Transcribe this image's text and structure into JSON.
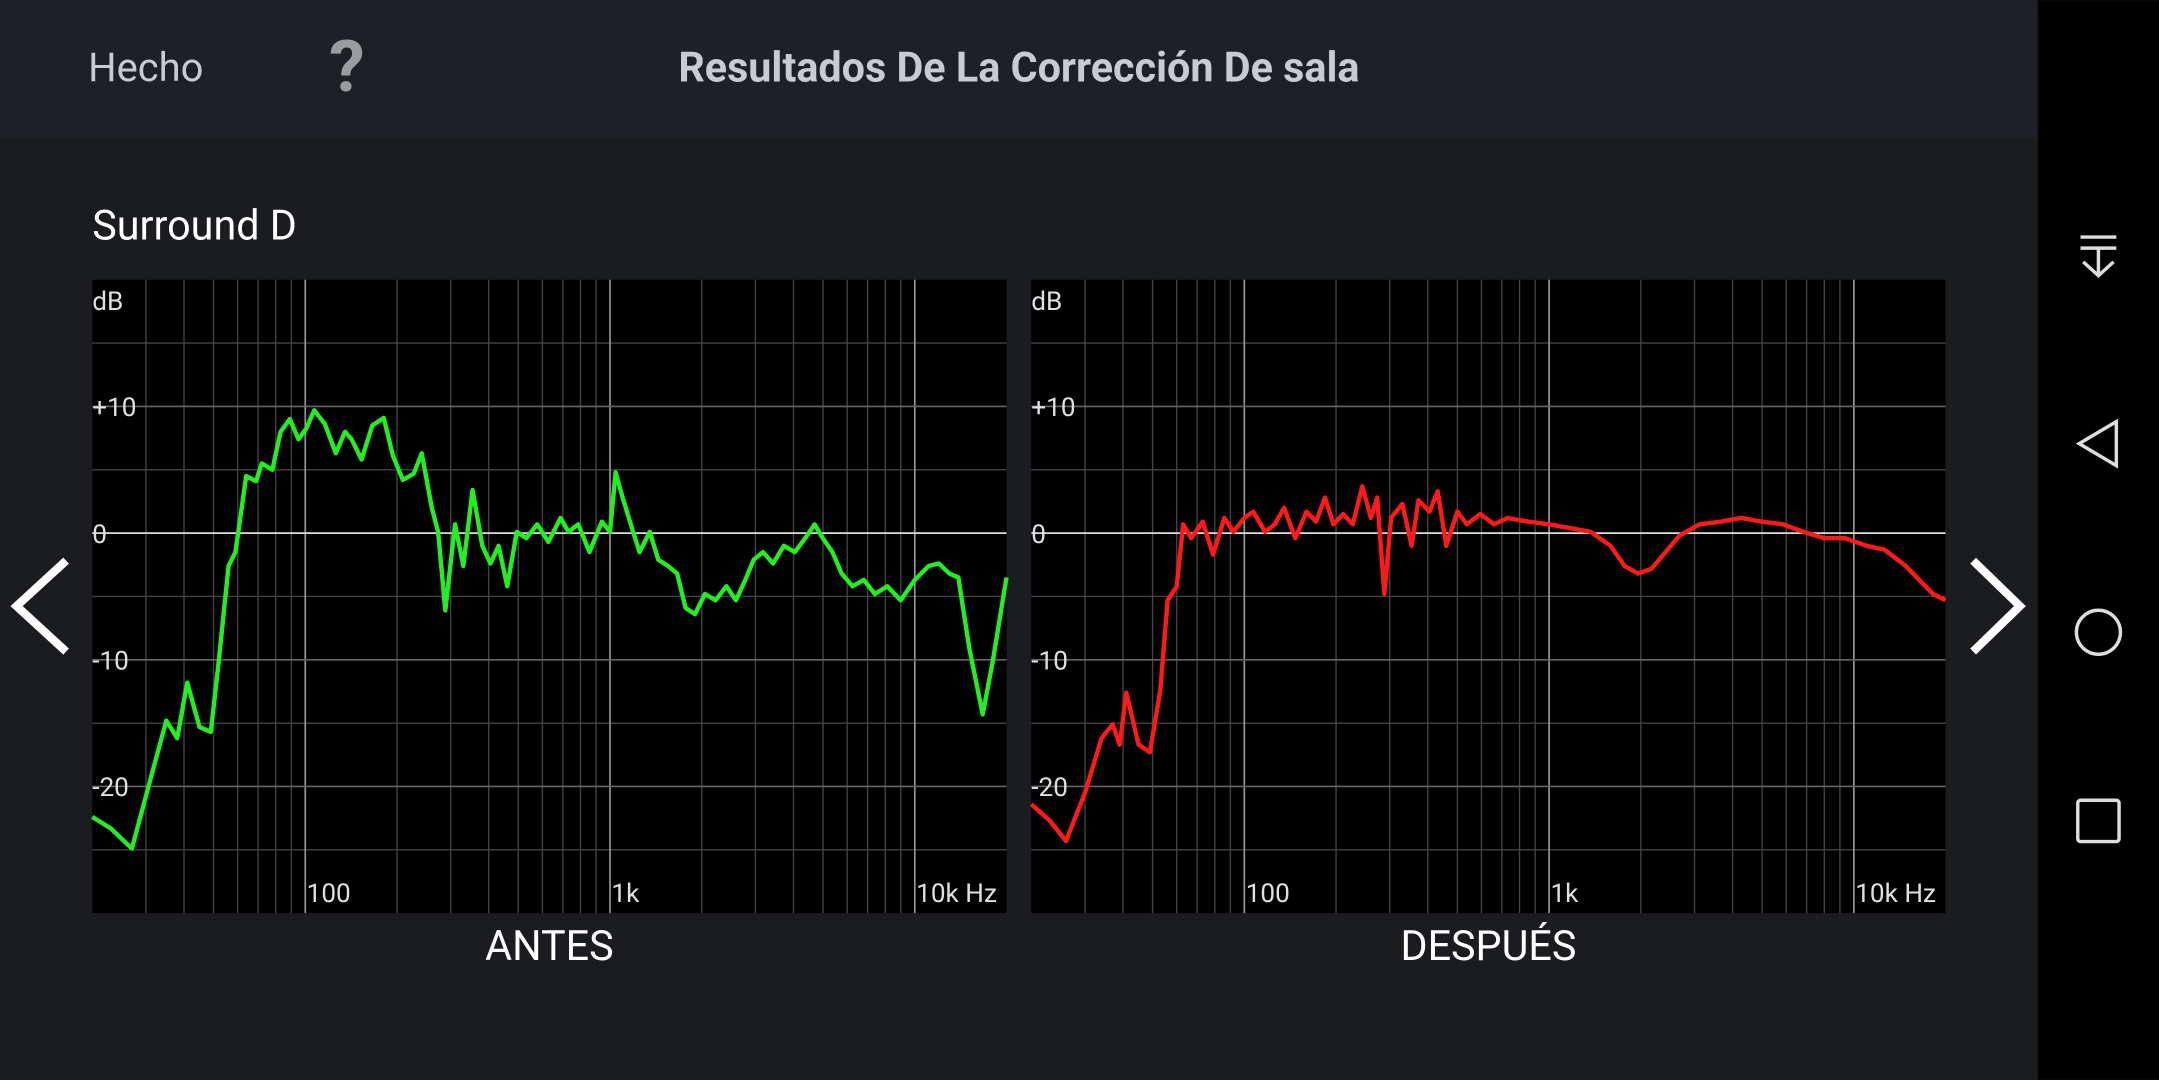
{
  "header": {
    "done": "Hecho",
    "help": "?",
    "title": "Resultados De La Corrección De sala"
  },
  "channel": "Surround D",
  "chart_data": [
    {
      "type": "line",
      "title": "ANTES",
      "ylabel": "dB",
      "xscale": "log",
      "grid": true,
      "color": "#22ee22",
      "xlim": [
        20,
        20000
      ],
      "ylim": [
        -30,
        20
      ],
      "xticks": [
        {
          "value": 100,
          "label": "100"
        },
        {
          "value": 1000,
          "label": "1k"
        },
        {
          "value": 10000,
          "label": "10k Hz"
        }
      ],
      "yticks": [
        {
          "value": 10,
          "label": "+10"
        },
        0,
        -10,
        -20
      ],
      "x": [
        20,
        23,
        27,
        31,
        35,
        38,
        41,
        45,
        49,
        52,
        56,
        59,
        64,
        69,
        72,
        78,
        83,
        89,
        95,
        101,
        107,
        116,
        126,
        135,
        142,
        153,
        166,
        181,
        194,
        209,
        227,
        241,
        260,
        273,
        288,
        310,
        330,
        354,
        381,
        405,
        431,
        460,
        494,
        531,
        577,
        628,
        688,
        731,
        787,
        856,
        940,
        1000,
        1043,
        1100,
        1190,
        1250,
        1350,
        1440,
        1550,
        1660,
        1770,
        1900,
        2050,
        2220,
        2410,
        2590,
        2780,
        2960,
        3180,
        3430,
        3720,
        4040,
        4370,
        4690,
        4990,
        5370,
        5760,
        6250,
        6800,
        7400,
        8120,
        9000,
        10000,
        11100,
        12000,
        13000,
        13900,
        15100,
        16700,
        18000,
        20000
      ],
      "values": [
        -22.4,
        -23.3,
        -24.9,
        -19.5,
        -14.8,
        -16.2,
        -11.8,
        -15.3,
        -15.7,
        -10.2,
        -2.6,
        -1.5,
        4.5,
        4.1,
        5.5,
        5.0,
        8.0,
        9.0,
        7.4,
        8.3,
        9.7,
        8.6,
        6.3,
        8.0,
        7.4,
        5.8,
        8.5,
        9.1,
        6.1,
        4.2,
        4.7,
        6.3,
        2.0,
        0.1,
        -6.1,
        0.7,
        -2.6,
        3.4,
        -1.0,
        -2.4,
        -1.0,
        -4.2,
        0.1,
        -0.4,
        0.7,
        -0.7,
        1.2,
        0.1,
        0.7,
        -1.5,
        0.9,
        0.1,
        4.8,
        2.8,
        0.1,
        -1.5,
        0.1,
        -2.1,
        -2.6,
        -3.2,
        -5.9,
        -6.4,
        -4.8,
        -5.3,
        -4.2,
        -5.3,
        -3.7,
        -2.1,
        -1.5,
        -2.4,
        -1.0,
        -1.5,
        -0.4,
        0.7,
        -0.4,
        -1.5,
        -3.2,
        -4.2,
        -3.7,
        -4.8,
        -4.2,
        -5.3,
        -3.7,
        -2.6,
        -2.4,
        -3.2,
        -3.5,
        -9.1,
        -14.3,
        -10.2,
        -3.5
      ]
    },
    {
      "type": "line",
      "title": "DESPUÉS",
      "ylabel": "dB",
      "xscale": "log",
      "grid": true,
      "color": "#ff1a1a",
      "xlim": [
        20,
        20000
      ],
      "ylim": [
        -30,
        20
      ],
      "xticks": [
        {
          "value": 100,
          "label": "100"
        },
        {
          "value": 1000,
          "label": "1k"
        },
        {
          "value": 10000,
          "label": "10k Hz"
        }
      ],
      "yticks": [
        {
          "value": 10,
          "label": "+10"
        },
        0,
        -10,
        -20
      ],
      "x": [
        20,
        23,
        26,
        30,
        34,
        37,
        39,
        41,
        45,
        49,
        53,
        56,
        60,
        63,
        67,
        73,
        79,
        86,
        92,
        100,
        107,
        117,
        126,
        135,
        147,
        160,
        172,
        184,
        196,
        211,
        227,
        244,
        260,
        273,
        288,
        303,
        330,
        354,
        373,
        405,
        431,
        460,
        500,
        537,
        595,
        660,
        730,
        855,
        1000,
        1170,
        1370,
        1590,
        1770,
        1960,
        2170,
        2410,
        2680,
        3120,
        3660,
        4270,
        5000,
        5840,
        6840,
        8000,
        9370,
        11000,
        12600,
        14800,
        16400,
        18200,
        20000
      ],
      "values": [
        -21.4,
        -22.7,
        -24.3,
        -20.5,
        -16.2,
        -15.1,
        -16.7,
        -12.6,
        -16.7,
        -17.3,
        -12.4,
        -5.3,
        -4.2,
        0.7,
        -0.4,
        0.9,
        -1.7,
        1.2,
        0.1,
        1.2,
        1.7,
        0.1,
        0.7,
        2.0,
        -0.4,
        1.7,
        0.9,
        2.8,
        0.7,
        1.5,
        0.7,
        3.7,
        1.2,
        2.8,
        -4.8,
        1.2,
        2.3,
        -1.0,
        2.6,
        1.7,
        3.3,
        -1.0,
        1.7,
        0.7,
        1.5,
        0.7,
        1.2,
        0.9,
        0.7,
        0.4,
        0.1,
        -1.0,
        -2.6,
        -3.2,
        -2.8,
        -1.5,
        -0.2,
        0.7,
        0.9,
        1.2,
        0.9,
        0.7,
        0.1,
        -0.4,
        -0.4,
        -1.0,
        -1.3,
        -2.6,
        -3.7,
        -4.8,
        -5.3
      ]
    }
  ]
}
